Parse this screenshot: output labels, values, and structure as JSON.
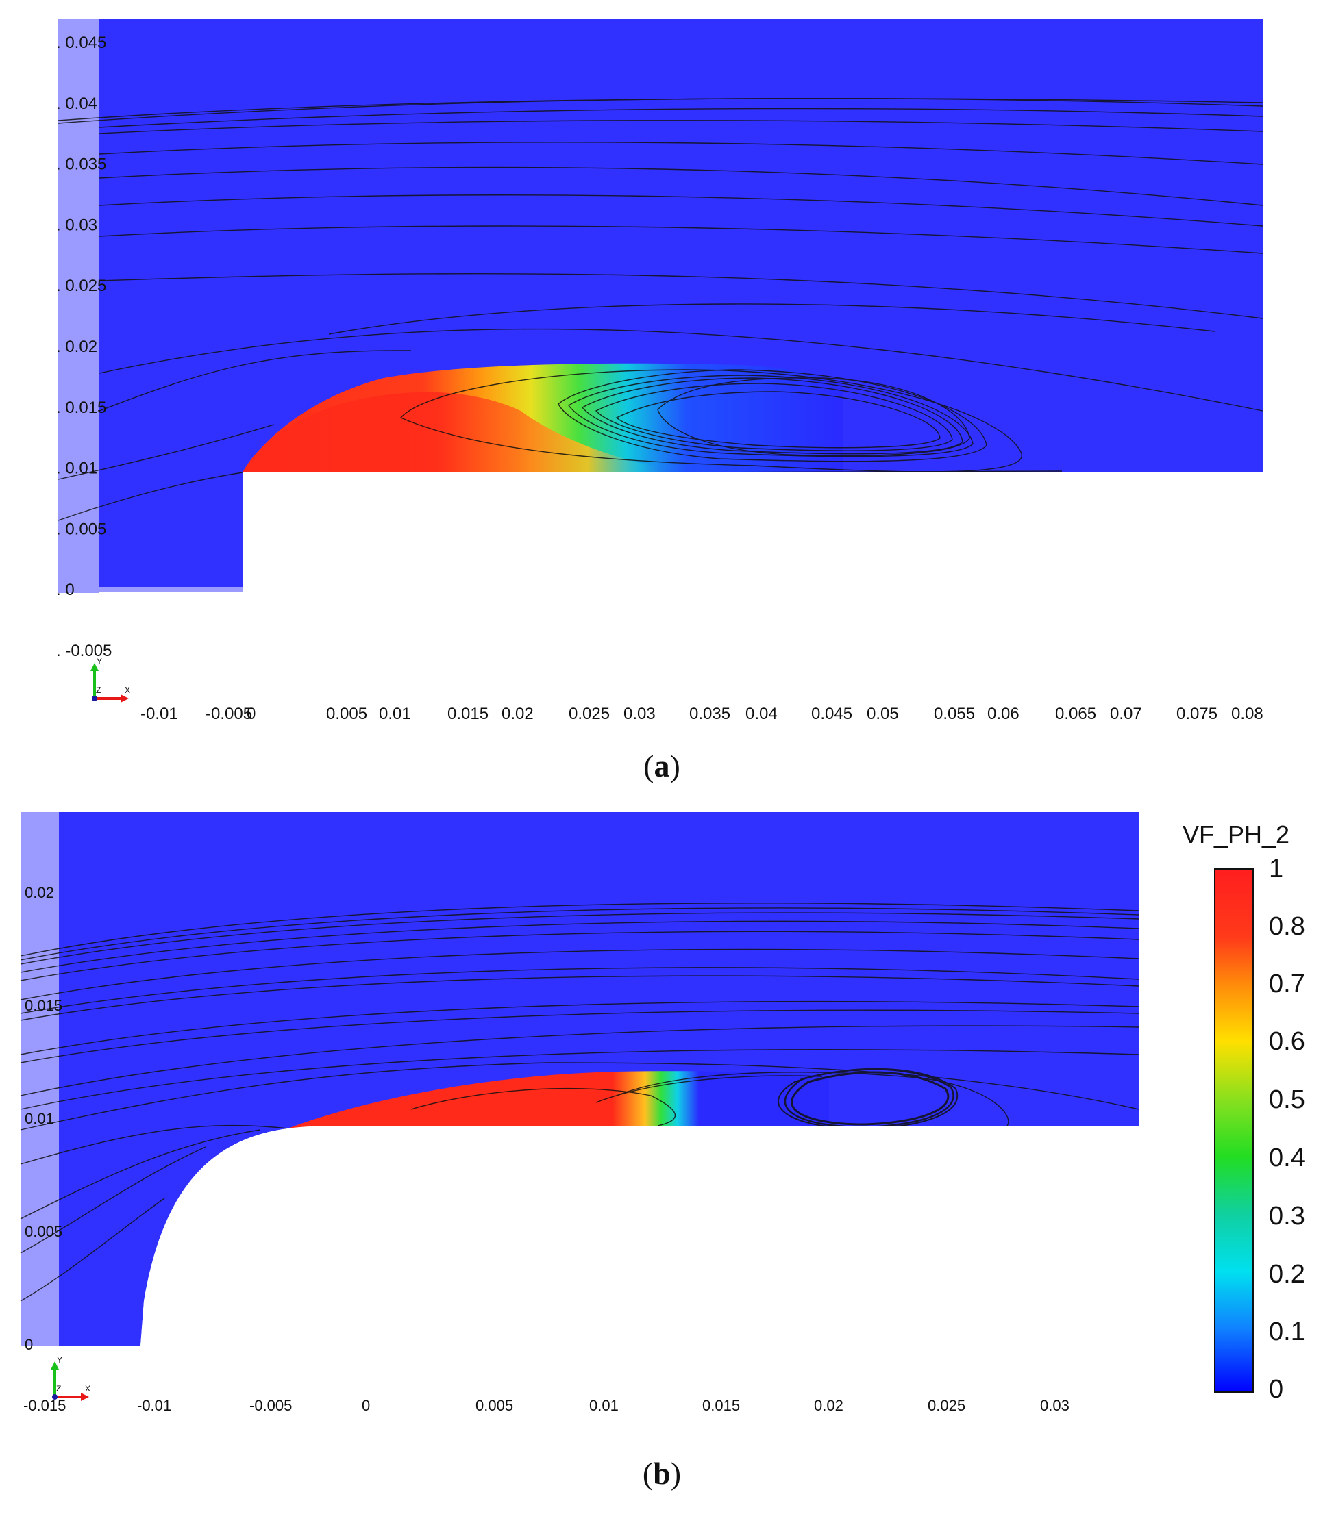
{
  "panel_a": {
    "caption_letter": "a",
    "x_ticks": [
      "-0.01",
      "-0.005",
      "0",
      "0.005",
      "0.01",
      "0.015",
      "0.02",
      "0.025",
      "0.03",
      "0.035",
      "0.04",
      "0.045",
      "0.05",
      "0.055",
      "0.06",
      "0.065",
      "0.07",
      "0.075",
      "0.08"
    ],
    "y_ticks": [
      "0.045",
      "0.04",
      "0.035",
      "0.03",
      "0.025",
      "0.02",
      "0.015",
      "0.01",
      "0.005",
      "0",
      "-0.005"
    ],
    "axis_triad": {
      "y": "Y",
      "z": "Z",
      "x": "X"
    }
  },
  "panel_b": {
    "caption_letter": "b",
    "x_ticks": [
      "-0.015",
      "-0.01",
      "-0.005",
      "0",
      "0.005",
      "0.01",
      "0.015",
      "0.02",
      "0.025",
      "0.03"
    ],
    "y_ticks": [
      "0.02",
      "0.015",
      "0.01",
      "0.005",
      "0"
    ],
    "axis_triad": {
      "y": "Y",
      "z": "Z",
      "x": "X"
    }
  },
  "legend": {
    "title": "VF_PH_2",
    "labels": [
      "1",
      "0.8",
      "0.7",
      "0.6",
      "0.5",
      "0.4",
      "0.3",
      "0.2",
      "0.1",
      "0"
    ]
  },
  "colors": {
    "background_fluid": "#3030ff",
    "axis_strip": "#9999ff",
    "streamline": "#111111",
    "scale_red": "#ff2020",
    "scale_orange": "#ff8c00",
    "scale_yellow": "#ffe000",
    "scale_green": "#22dd22",
    "scale_cyan": "#00e0f0",
    "scale_blue": "#0000ff"
  }
}
